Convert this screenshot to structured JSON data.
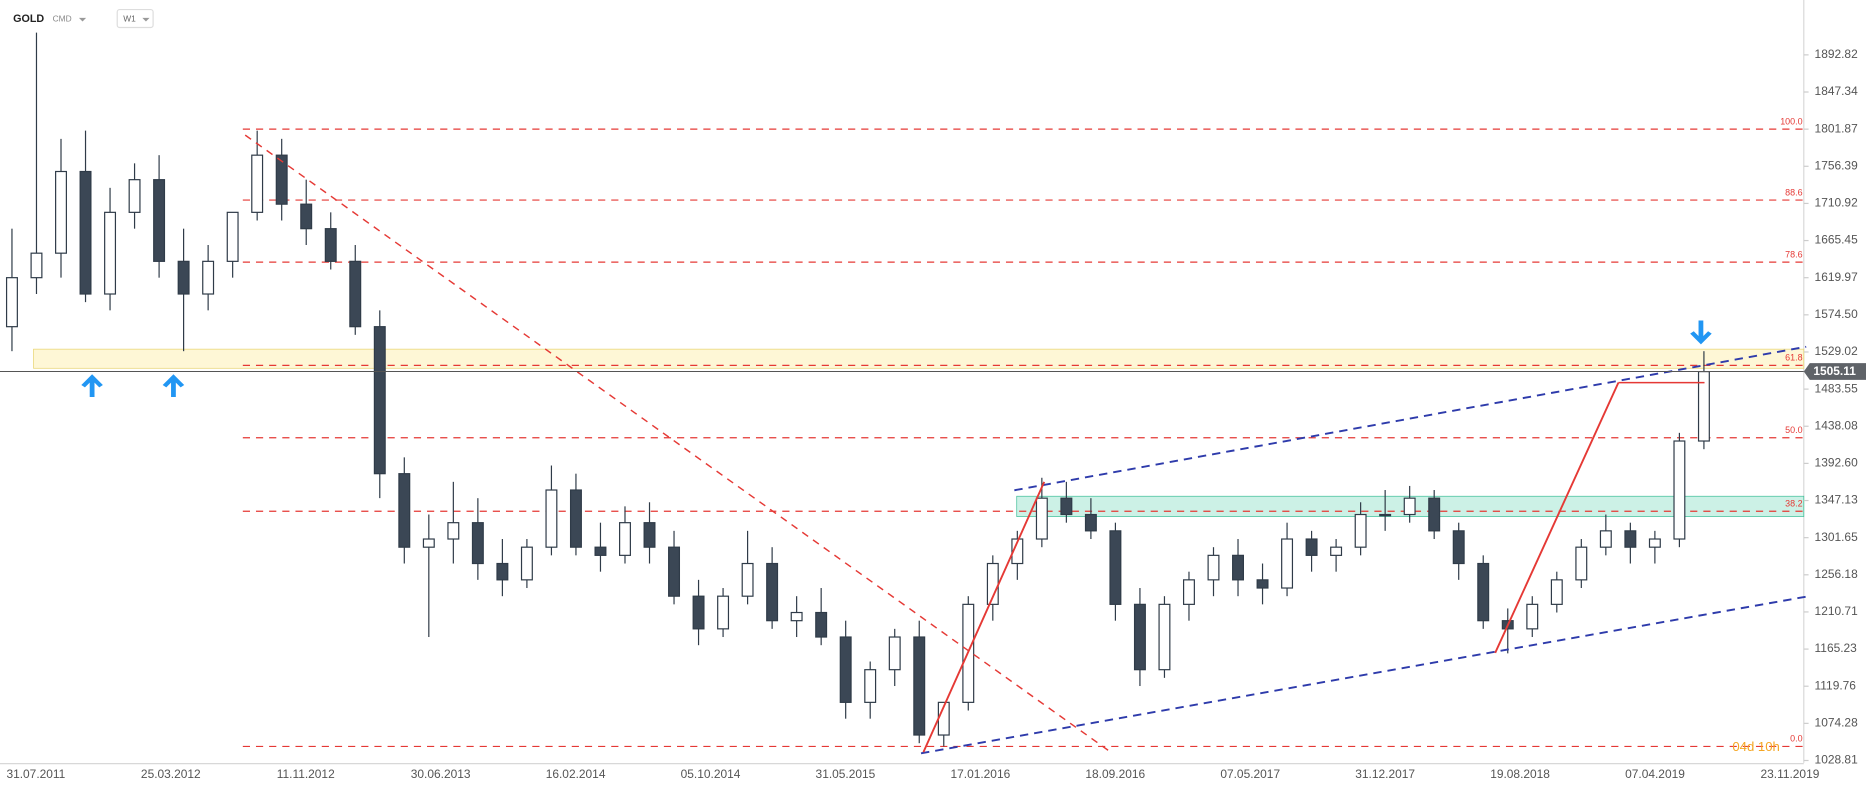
{
  "chart_data": {
    "type": "candlestick",
    "symbol": "GOLD",
    "market": "CMD",
    "interval": "W1",
    "timer": "04d 10h",
    "last_price": 1505.11,
    "ylim": [
      1025,
      1960
    ],
    "yticks": [
      1028.81,
      1074.28,
      1119.76,
      1165.23,
      1210.71,
      1256.18,
      1301.65,
      1347.13,
      {
        "value": 1392.6,
        "label": "1392.60"
      },
      1438.08,
      1483.55,
      1529.02,
      {
        "value": 1574.5,
        "label": "1574.50"
      },
      1619.97,
      1665.45,
      1710.92,
      1756.39,
      1801.87,
      1847.34,
      1892.82
    ],
    "xlabels": [
      "31.07.2011",
      "25.03.2012",
      "11.11.2012",
      "30.06.2013",
      "16.02.2014",
      "05.10.2014",
      "31.05.2015",
      "17.01.2016",
      "18.09.2016",
      "07.05.2017",
      "31.12.2017",
      "19.08.2018",
      "07.04.2019",
      "23.11.2019"
    ],
    "fib_levels": [
      {
        "value": 1801.87,
        "label": "100.0"
      },
      {
        "value": 1715,
        "label": "88.6"
      },
      {
        "value": 1639,
        "label": "78.6"
      },
      {
        "value": 1512.6,
        "label": "61.8"
      },
      {
        "value": 1424,
        "label": "50.0"
      },
      {
        "value": 1334,
        "label": "38.2"
      },
      {
        "value": 1046,
        "label": "0.0"
      }
    ],
    "open": [
      1560,
      1620,
      1650,
      1750,
      1600,
      1700,
      1740,
      1640,
      1600,
      1640,
      1700,
      1770,
      1710,
      1680,
      1640,
      1560,
      1380,
      1290,
      1300,
      1320,
      1270,
      1250,
      1290,
      1360,
      1290,
      1280,
      1320,
      1290,
      1230,
      1190,
      1230,
      1270,
      1200,
      1210,
      1180,
      1100,
      1140,
      1180,
      1060,
      1100,
      1220,
      1270,
      1300,
      1350,
      1330,
      1310,
      1220,
      1140,
      1220,
      1250,
      1280,
      1250,
      1240,
      1300,
      1280,
      1290,
      1330,
      1330,
      1350,
      1310,
      1270,
      1200,
      1190,
      1220,
      1250,
      1290,
      1310,
      1290,
      1300,
      1420
    ],
    "high": [
      1680,
      1920,
      1790,
      1800,
      1730,
      1760,
      1770,
      1680,
      1660,
      1700,
      1800,
      1790,
      1740,
      1700,
      1660,
      1580,
      1400,
      1330,
      1370,
      1350,
      1300,
      1300,
      1390,
      1380,
      1320,
      1340,
      1345,
      1310,
      1250,
      1240,
      1310,
      1290,
      1230,
      1240,
      1200,
      1150,
      1190,
      1200,
      1100,
      1230,
      1280,
      1310,
      1375,
      1370,
      1350,
      1320,
      1240,
      1230,
      1260,
      1290,
      1300,
      1270,
      1320,
      1310,
      1300,
      1345,
      1360,
      1365,
      1360,
      1320,
      1280,
      1215,
      1230,
      1260,
      1300,
      1330,
      1320,
      1310,
      1430,
      1530
    ],
    "low": [
      1530,
      1600,
      1620,
      1590,
      1580,
      1680,
      1620,
      1530,
      1580,
      1620,
      1690,
      1690,
      1660,
      1630,
      1550,
      1350,
      1270,
      1180,
      1270,
      1250,
      1230,
      1240,
      1280,
      1280,
      1260,
      1270,
      1270,
      1220,
      1170,
      1180,
      1220,
      1190,
      1180,
      1170,
      1080,
      1080,
      1120,
      1050,
      1046,
      1090,
      1200,
      1250,
      1290,
      1320,
      1300,
      1200,
      1120,
      1130,
      1200,
      1230,
      1230,
      1220,
      1230,
      1260,
      1260,
      1280,
      1310,
      1320,
      1300,
      1250,
      1190,
      1160,
      1180,
      1210,
      1240,
      1280,
      1270,
      1270,
      1290,
      1410
    ],
    "close": [
      1620,
      1650,
      1750,
      1600,
      1700,
      1740,
      1640,
      1600,
      1640,
      1700,
      1770,
      1710,
      1680,
      1640,
      1560,
      1380,
      1290,
      1300,
      1320,
      1270,
      1250,
      1290,
      1360,
      1290,
      1280,
      1320,
      1290,
      1230,
      1190,
      1230,
      1270,
      1200,
      1210,
      1180,
      1100,
      1140,
      1180,
      1060,
      1100,
      1220,
      1270,
      1300,
      1350,
      1330,
      1310,
      1220,
      1140,
      1220,
      1250,
      1280,
      1250,
      1240,
      1300,
      1280,
      1290,
      1330,
      1330,
      1350,
      1310,
      1270,
      1200,
      1190,
      1220,
      1250,
      1290,
      1310,
      1290,
      1300,
      1420,
      1505
    ]
  }
}
